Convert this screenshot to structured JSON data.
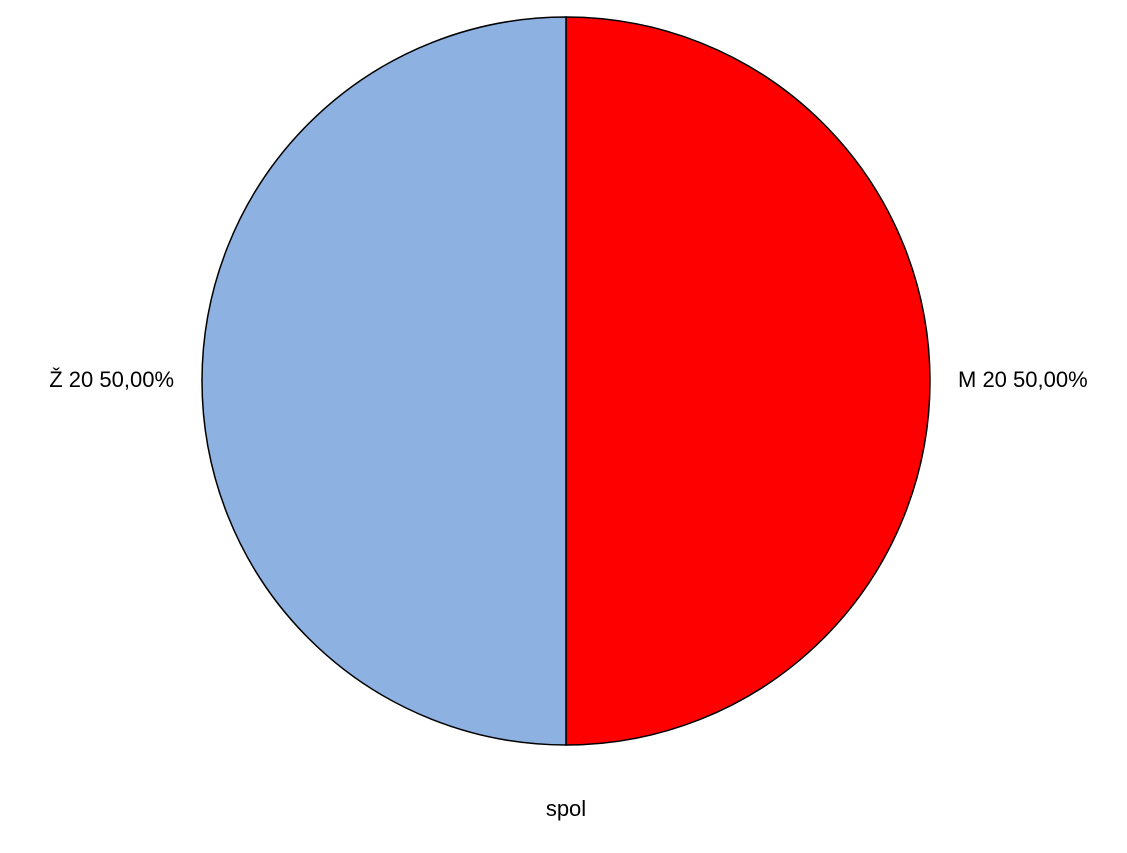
{
  "chart_data": {
    "type": "pie",
    "title": "",
    "xlabel": "spol",
    "slices": [
      {
        "label": "M 20 50,00%",
        "category": "M",
        "value": 20,
        "percent": 50.0,
        "color": "#ff0000"
      },
      {
        "label": "Ž 20 50,00%",
        "category": "Ž",
        "value": 20,
        "percent": 50.0,
        "color": "#8db1e1"
      }
    ],
    "start": "top",
    "direction": "clockwise",
    "outline_color": "#000000",
    "legend": "none"
  }
}
